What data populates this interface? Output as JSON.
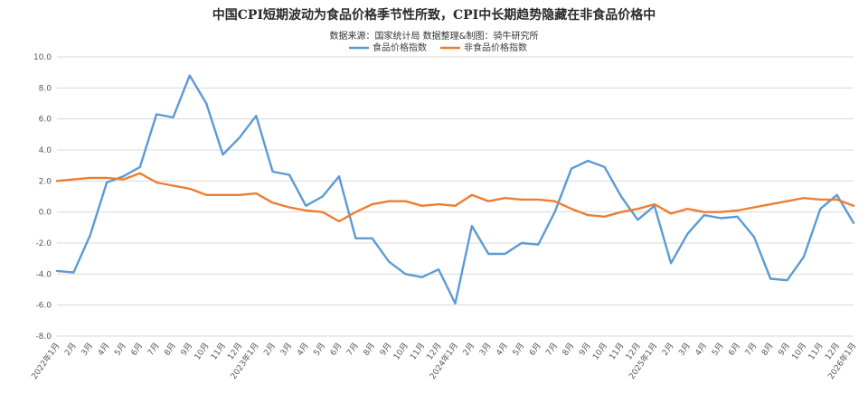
{
  "chart_data": {
    "type": "line",
    "title": "中国CPI短期波动为食品价格季节性所致，CPI中长期趋势隐藏在非食品价格中",
    "subtitle": "数据来源：国家统计局     数据整理&制图：骑牛研究所",
    "xlabel": "",
    "ylabel": "",
    "ylim": [
      -8.0,
      10.0
    ],
    "yticks": [
      "10.0",
      "8.0",
      "6.0",
      "4.0",
      "2.0",
      "0.0",
      "-2.0",
      "-4.0",
      "-6.0",
      "-8.0"
    ],
    "grid": true,
    "legend_position": "top",
    "categories": [
      "2022年1月",
      "2月",
      "3月",
      "4月",
      "5月",
      "6月",
      "7月",
      "8月",
      "9月",
      "10月",
      "11月",
      "12月",
      "2023年1月",
      "2月",
      "3月",
      "4月",
      "5月",
      "6月",
      "7月",
      "8月",
      "9月",
      "10月",
      "11月",
      "12月",
      "2024年1月",
      "2月",
      "3月",
      "4月",
      "5月",
      "6月",
      "7月",
      "8月",
      "9月",
      "10月",
      "11月",
      "12月",
      "2025年1月",
      "2月",
      "3月",
      "4月",
      "5月",
      "6月",
      "7月",
      "8月",
      "9月",
      "10月",
      "11月",
      "12月",
      "2026年1月"
    ],
    "series": [
      {
        "name": "食品价格指数",
        "color": "#5b9bd5",
        "values": [
          -3.8,
          -3.9,
          -1.5,
          1.9,
          2.3,
          2.9,
          6.3,
          6.1,
          8.8,
          7.0,
          3.7,
          4.8,
          6.2,
          2.6,
          2.4,
          0.4,
          1.0,
          2.3,
          -1.7,
          -1.7,
          -3.2,
          -4.0,
          -4.2,
          -3.7,
          -5.9,
          -0.9,
          -2.7,
          -2.7,
          -2.0,
          -2.1,
          0.0,
          2.8,
          3.3,
          2.9,
          1.0,
          -0.5,
          0.4,
          -3.3,
          -1.4,
          -0.2,
          -0.4,
          -0.3,
          -1.6,
          -4.3,
          -4.4,
          -2.9,
          0.2,
          1.1,
          -0.7
        ]
      },
      {
        "name": "非食品价格指数",
        "color": "#ed7d31",
        "values": [
          2.0,
          2.1,
          2.2,
          2.2,
          2.1,
          2.5,
          1.9,
          1.7,
          1.5,
          1.1,
          1.1,
          1.1,
          1.2,
          0.6,
          0.3,
          0.1,
          0.0,
          -0.6,
          0.0,
          0.5,
          0.7,
          0.7,
          0.4,
          0.5,
          0.4,
          1.1,
          0.7,
          0.9,
          0.8,
          0.8,
          0.7,
          0.2,
          -0.2,
          -0.3,
          0.0,
          0.2,
          0.5,
          -0.1,
          0.2,
          0.0,
          0.0,
          0.1,
          0.3,
          0.5,
          0.7,
          0.9,
          0.8,
          0.8,
          0.4
        ]
      }
    ]
  }
}
